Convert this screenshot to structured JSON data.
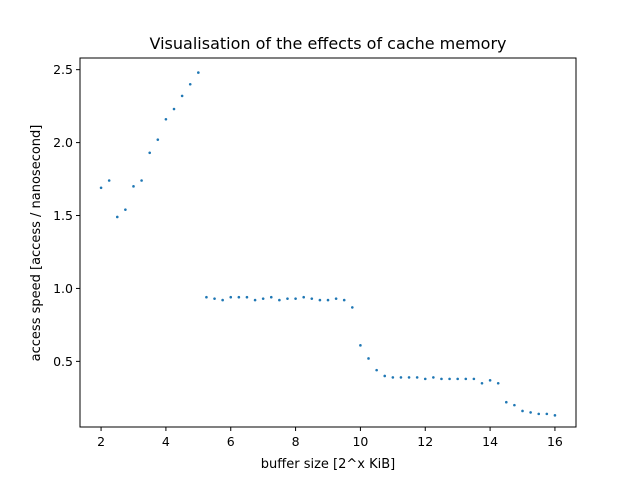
{
  "chart_data": {
    "type": "scatter",
    "title": "Visualisation of the effects of cache memory",
    "xlabel": "buffer size [2^x KiB]",
    "ylabel": "access speed [access / nanosecond]",
    "xlim": [
      1.35,
      16.65
    ],
    "ylim": [
      0.05,
      2.58
    ],
    "xticks": [
      2,
      4,
      6,
      8,
      10,
      12,
      14,
      16
    ],
    "yticks": [
      0.5,
      1.0,
      1.5,
      2.0,
      2.5
    ],
    "xtick_labels": [
      "2",
      "4",
      "6",
      "8",
      "10",
      "12",
      "14",
      "16"
    ],
    "ytick_labels": [
      "0.5",
      "1.0",
      "1.5",
      "2.0",
      "2.5"
    ],
    "grid": false,
    "legend": "none",
    "marker_color": "#1f77b4",
    "series": [
      {
        "x": [
          2.0,
          2.25,
          2.5,
          2.75,
          3.0,
          3.25,
          3.5,
          3.75,
          4.0,
          4.25,
          4.5,
          4.75,
          5.0,
          5.25,
          5.5,
          5.75,
          6.0,
          6.25,
          6.5,
          6.75,
          7.0,
          7.25,
          7.5,
          7.75,
          8.0,
          8.25,
          8.5,
          8.75,
          9.0,
          9.25,
          9.5,
          9.75,
          10.0,
          10.25,
          10.5,
          10.75,
          11.0,
          11.25,
          11.5,
          11.75,
          12.0,
          12.25,
          12.5,
          12.75,
          13.0,
          13.25,
          13.5,
          13.75,
          14.0,
          14.25,
          14.5,
          14.75,
          15.0,
          15.25,
          15.5,
          15.75,
          16.0
        ],
        "y": [
          1.69,
          1.74,
          1.49,
          1.54,
          1.7,
          1.74,
          1.93,
          2.02,
          2.16,
          2.23,
          2.32,
          2.4,
          2.48,
          0.94,
          0.93,
          0.92,
          0.94,
          0.94,
          0.94,
          0.92,
          0.93,
          0.94,
          0.92,
          0.93,
          0.93,
          0.94,
          0.93,
          0.92,
          0.92,
          0.93,
          0.92,
          0.87,
          0.61,
          0.52,
          0.44,
          0.4,
          0.39,
          0.39,
          0.39,
          0.39,
          0.38,
          0.39,
          0.38,
          0.38,
          0.38,
          0.38,
          0.38,
          0.35,
          0.37,
          0.35,
          0.22,
          0.2,
          0.16,
          0.15,
          0.14,
          0.14,
          0.13
        ]
      }
    ]
  }
}
